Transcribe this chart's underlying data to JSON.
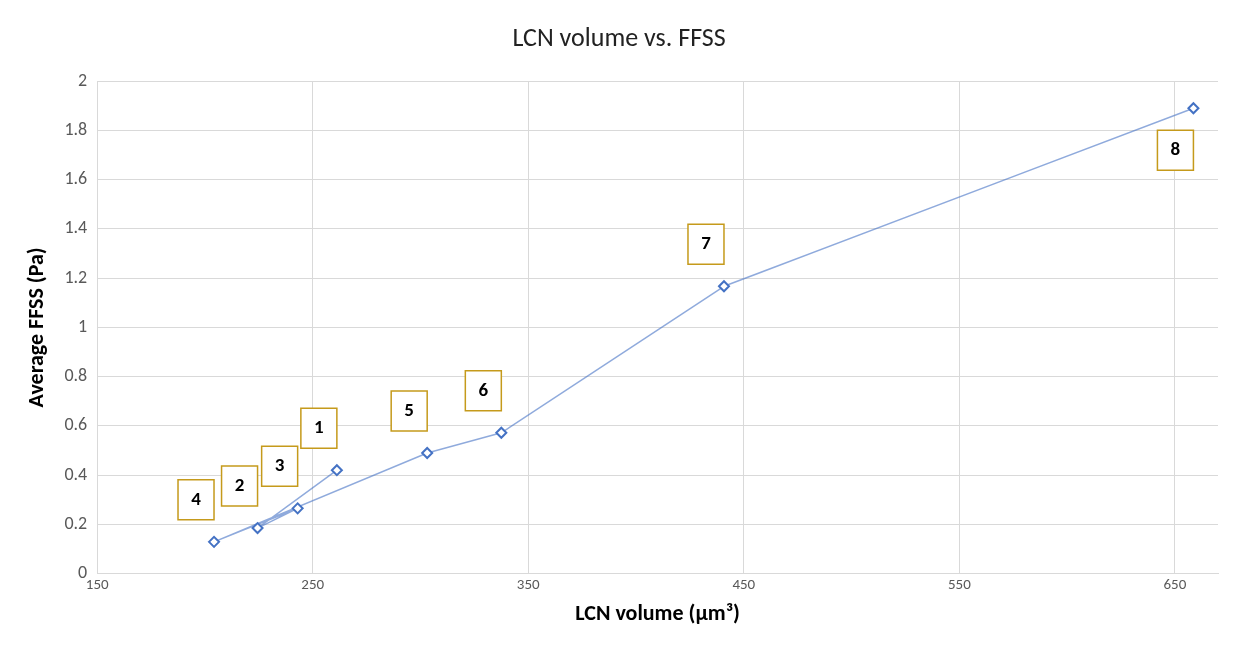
{
  "chart_data": {
    "type": "line",
    "title": "LCN volume vs. FFSS",
    "xlabel": "LCN volume (µm³)",
    "ylabel": "Average FFSS (Pa)",
    "x": [
      261.2,
      224.4,
      243,
      204.2,
      303.1,
      337.5,
      440.8,
      658.6
    ],
    "values": [
      0.42,
      0.185,
      0.265,
      0.129,
      0.49,
      0.572,
      1.167,
      1.89
    ],
    "annotations": [
      {
        "text": "1",
        "x": 261.2,
        "y": 0.42
      },
      {
        "text": "2",
        "x": 224.4,
        "y": 0.185
      },
      {
        "text": "3",
        "x": 243,
        "y": 0.265
      },
      {
        "text": "4",
        "x": 204.2,
        "y": 0.129
      },
      {
        "text": "5",
        "x": 303.1,
        "y": 0.49
      },
      {
        "text": "6",
        "x": 337.5,
        "y": 0.572
      },
      {
        "text": "7",
        "x": 440.8,
        "y": 1.167
      },
      {
        "text": "8",
        "x": 658.6,
        "y": 1.89
      }
    ],
    "color": "#4472c4",
    "xlim": [
      150,
      670
    ],
    "xticks": [
      150,
      250,
      350,
      450,
      550,
      650
    ],
    "ylim": [
      0,
      2
    ],
    "yticks": [
      0,
      0.2,
      0.4,
      0.6,
      0.8,
      1,
      1.2,
      1.4,
      1.6,
      1.8,
      2
    ],
    "grid": true,
    "marker": "diamond",
    "line_style": "solid"
  }
}
